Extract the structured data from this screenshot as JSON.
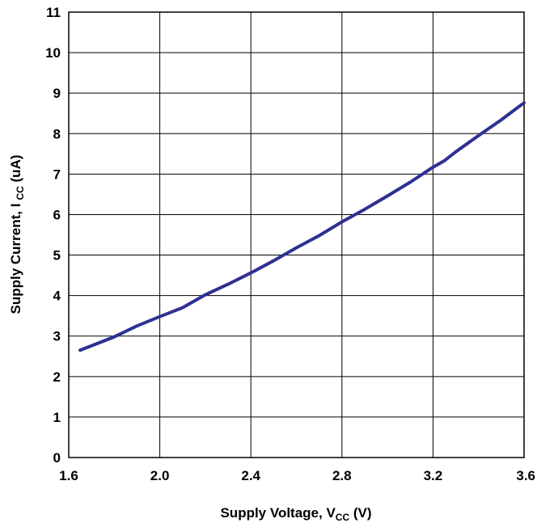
{
  "chart_data": {
    "type": "line",
    "title": "",
    "xlabel": "Supply Voltage, V",
    "xlabel_sub": "CC",
    "xlabel_unit": " (V)",
    "ylabel": "Supply Current, I",
    "ylabel_sub": "CC",
    "ylabel_unit": " (uA)",
    "xlim": [
      1.6,
      3.6
    ],
    "ylim": [
      0,
      11
    ],
    "x_ticks": [
      "1.6",
      "2.0",
      "2.4",
      "2.8",
      "3.2",
      "3.6"
    ],
    "y_ticks": [
      "0",
      "1",
      "2",
      "3",
      "4",
      "5",
      "6",
      "7",
      "8",
      "9",
      "10",
      "11"
    ],
    "x_tick_values": [
      1.6,
      2.0,
      2.4,
      2.8,
      3.2,
      3.6
    ],
    "y_tick_values": [
      0,
      1,
      2,
      3,
      4,
      5,
      6,
      7,
      8,
      9,
      10,
      11
    ],
    "grid": true,
    "legend": "none",
    "series": [
      {
        "color": "#2e3192",
        "x": [
          1.65,
          1.7,
          1.8,
          1.9,
          2.0,
          2.1,
          2.2,
          2.3,
          2.4,
          2.5,
          2.6,
          2.7,
          2.8,
          2.9,
          3.0,
          3.1,
          3.2,
          3.25,
          3.3,
          3.4,
          3.5,
          3.6
        ],
        "y": [
          2.65,
          2.76,
          2.98,
          3.25,
          3.48,
          3.7,
          4.02,
          4.28,
          4.56,
          4.86,
          5.18,
          5.48,
          5.82,
          6.13,
          6.46,
          6.8,
          7.17,
          7.33,
          7.55,
          7.95,
          8.34,
          8.76
        ]
      }
    ]
  }
}
